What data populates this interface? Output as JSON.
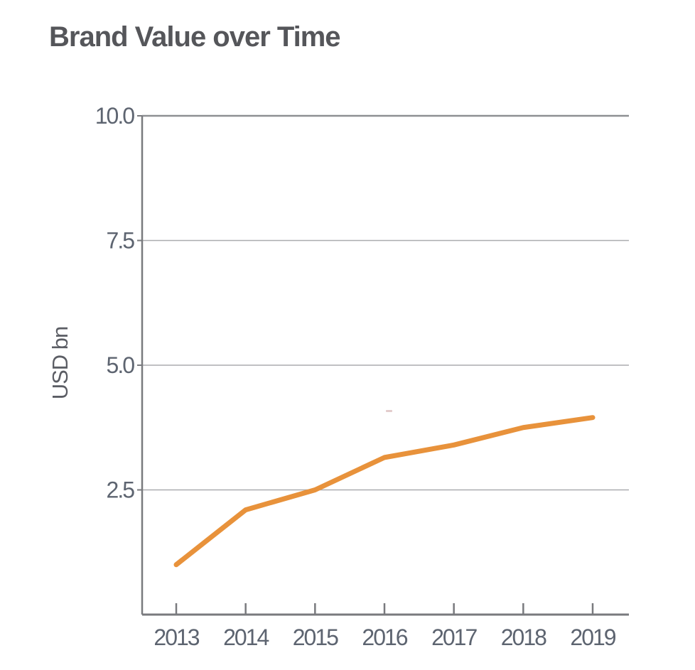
{
  "chart_data": {
    "type": "line",
    "title": "Brand Value over Time",
    "xlabel": "",
    "ylabel": "USD bn",
    "categories": [
      "2013",
      "2014",
      "2015",
      "2016",
      "2017",
      "2018",
      "2019"
    ],
    "series": [
      {
        "values": [
          1.0,
          2.1,
          2.5,
          3.15,
          3.4,
          3.75,
          3.95
        ],
        "color": "#E8923B"
      }
    ],
    "ylim": [
      0,
      10
    ],
    "yticks": [
      2.5,
      5.0,
      7.5,
      10.0
    ],
    "ytick_labels": [
      "2.5",
      "5.0",
      "7.5",
      "10.0"
    ],
    "grid": "horizontal",
    "legend": "none"
  },
  "colors": {
    "title_text": "#55565A",
    "tick_label_text": "#5D6470",
    "axis_line": "#797A7E",
    "top_border": "#8E8F93",
    "gridline": "#ABACAF",
    "series_line": "#E8923B",
    "background": "#FFFFFF"
  }
}
